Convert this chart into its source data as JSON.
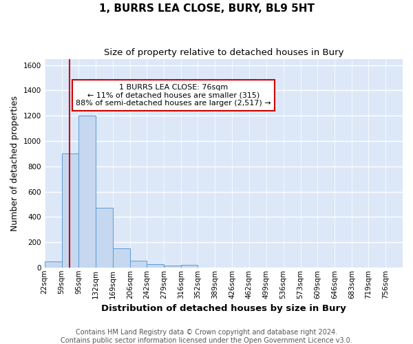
{
  "title": "1, BURRS LEA CLOSE, BURY, BL9 5HT",
  "subtitle": "Size of property relative to detached houses in Bury",
  "xlabel": "Distribution of detached houses by size in Bury",
  "ylabel": "Number of detached properties",
  "footer_line1": "Contains HM Land Registry data © Crown copyright and database right 2024.",
  "footer_line2": "Contains public sector information licensed under the Open Government Licence v3.0.",
  "bin_edges": [
    22,
    59,
    95,
    132,
    169,
    206,
    242,
    279,
    316,
    352,
    389,
    426,
    462,
    499,
    536,
    573,
    609,
    646,
    683,
    719,
    756
  ],
  "values": [
    50,
    900,
    1200,
    470,
    150,
    55,
    28,
    15,
    20,
    0,
    0,
    0,
    0,
    0,
    0,
    0,
    0,
    0,
    0,
    0
  ],
  "bar_color": "#c5d8f0",
  "bar_edge_color": "#5b9bd5",
  "vline_x": 76,
  "vline_color": "#cc0000",
  "annotation_text": "1 BURRS LEA CLOSE: 76sqm\n← 11% of detached houses are smaller (315)\n88% of semi-detached houses are larger (2,517) →",
  "annotation_box_color": "white",
  "annotation_box_edge_color": "#cc0000",
  "ylim": [
    0,
    1650
  ],
  "yticks": [
    0,
    200,
    400,
    600,
    800,
    1000,
    1200,
    1400,
    1600
  ],
  "bg_color": "#dce8f8",
  "grid_color": "#c0cfe0",
  "title_fontsize": 11,
  "subtitle_fontsize": 9.5,
  "axis_label_fontsize": 9,
  "tick_fontsize": 7.5,
  "footer_fontsize": 7
}
